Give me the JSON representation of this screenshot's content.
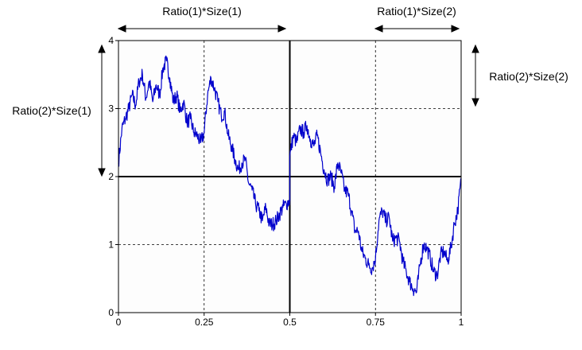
{
  "chart_data": {
    "type": "line",
    "xlim": [
      0,
      1
    ],
    "ylim": [
      0,
      4
    ],
    "x_ticks": [
      "0",
      "0.25",
      "0.5",
      "0.75",
      "1"
    ],
    "y_ticks": [
      "0",
      "1",
      "2",
      "3",
      "4"
    ],
    "grid": "dashed at 0.25 x-intervals and 1 y-intervals; solid lines at x=0.5 and y=2",
    "series": [
      {
        "color": "#0000cc",
        "points": [
          [
            0.0,
            2.2
          ],
          [
            0.01,
            2.7
          ],
          [
            0.02,
            2.85
          ],
          [
            0.03,
            3.0
          ],
          [
            0.04,
            3.2
          ],
          [
            0.05,
            3.05
          ],
          [
            0.06,
            3.4
          ],
          [
            0.07,
            3.5
          ],
          [
            0.08,
            3.15
          ],
          [
            0.09,
            3.4
          ],
          [
            0.1,
            3.1
          ],
          [
            0.11,
            3.35
          ],
          [
            0.12,
            3.2
          ],
          [
            0.13,
            3.6
          ],
          [
            0.14,
            3.7
          ],
          [
            0.15,
            3.45
          ],
          [
            0.16,
            3.1
          ],
          [
            0.17,
            3.2
          ],
          [
            0.18,
            2.95
          ],
          [
            0.19,
            3.1
          ],
          [
            0.2,
            2.8
          ],
          [
            0.21,
            2.85
          ],
          [
            0.22,
            2.65
          ],
          [
            0.23,
            2.6
          ],
          [
            0.24,
            2.5
          ],
          [
            0.25,
            2.65
          ],
          [
            0.26,
            3.2
          ],
          [
            0.27,
            3.45
          ],
          [
            0.28,
            3.3
          ],
          [
            0.29,
            3.1
          ],
          [
            0.3,
            2.9
          ],
          [
            0.31,
            2.95
          ],
          [
            0.32,
            2.6
          ],
          [
            0.33,
            2.45
          ],
          [
            0.34,
            2.25
          ],
          [
            0.35,
            2.1
          ],
          [
            0.36,
            2.2
          ],
          [
            0.37,
            2.25
          ],
          [
            0.38,
            1.9
          ],
          [
            0.39,
            1.8
          ],
          [
            0.4,
            1.6
          ],
          [
            0.41,
            1.5
          ],
          [
            0.42,
            1.35
          ],
          [
            0.43,
            1.55
          ],
          [
            0.44,
            1.3
          ],
          [
            0.45,
            1.3
          ],
          [
            0.46,
            1.35
          ],
          [
            0.47,
            1.45
          ],
          [
            0.48,
            1.55
          ],
          [
            0.49,
            1.6
          ],
          [
            0.5,
            1.65
          ],
          [
            0.5,
            2.3
          ],
          [
            0.51,
            2.6
          ],
          [
            0.52,
            2.5
          ],
          [
            0.53,
            2.7
          ],
          [
            0.54,
            2.65
          ],
          [
            0.55,
            2.75
          ],
          [
            0.56,
            2.55
          ],
          [
            0.57,
            2.45
          ],
          [
            0.58,
            2.6
          ],
          [
            0.59,
            2.35
          ],
          [
            0.6,
            2.1
          ],
          [
            0.61,
            1.95
          ],
          [
            0.62,
            2.0
          ],
          [
            0.63,
            1.85
          ],
          [
            0.64,
            2.2
          ],
          [
            0.65,
            2.05
          ],
          [
            0.66,
            1.8
          ],
          [
            0.67,
            1.75
          ],
          [
            0.68,
            1.5
          ],
          [
            0.69,
            1.2
          ],
          [
            0.7,
            1.2
          ],
          [
            0.71,
            0.9
          ],
          [
            0.72,
            0.8
          ],
          [
            0.73,
            0.7
          ],
          [
            0.74,
            0.65
          ],
          [
            0.75,
            0.8
          ],
          [
            0.76,
            1.35
          ],
          [
            0.77,
            1.5
          ],
          [
            0.78,
            1.35
          ],
          [
            0.79,
            1.4
          ],
          [
            0.8,
            1.05
          ],
          [
            0.81,
            1.1
          ],
          [
            0.82,
            1.05
          ],
          [
            0.83,
            0.75
          ],
          [
            0.84,
            0.6
          ],
          [
            0.85,
            0.45
          ],
          [
            0.86,
            0.35
          ],
          [
            0.87,
            0.3
          ],
          [
            0.88,
            0.7
          ],
          [
            0.89,
            1.0
          ],
          [
            0.9,
            0.95
          ],
          [
            0.91,
            0.8
          ],
          [
            0.92,
            0.6
          ],
          [
            0.93,
            0.55
          ],
          [
            0.94,
            0.85
          ],
          [
            0.95,
            0.9
          ],
          [
            0.96,
            0.75
          ],
          [
            0.97,
            0.95
          ],
          [
            0.98,
            1.3
          ],
          [
            0.99,
            1.5
          ],
          [
            1.0,
            1.95
          ]
        ]
      }
    ],
    "annotations": [
      {
        "name": "top-left-ratio-label",
        "text": "Ratio(1)*Size(1)"
      },
      {
        "name": "top-right-ratio-label",
        "text": "Ratio(1)*Size(2)"
      },
      {
        "name": "left-ratio-label",
        "text": "Ratio(2)*Size(1)"
      },
      {
        "name": "right-ratio-label",
        "text": "Ratio(2)*Size(2)"
      }
    ]
  }
}
